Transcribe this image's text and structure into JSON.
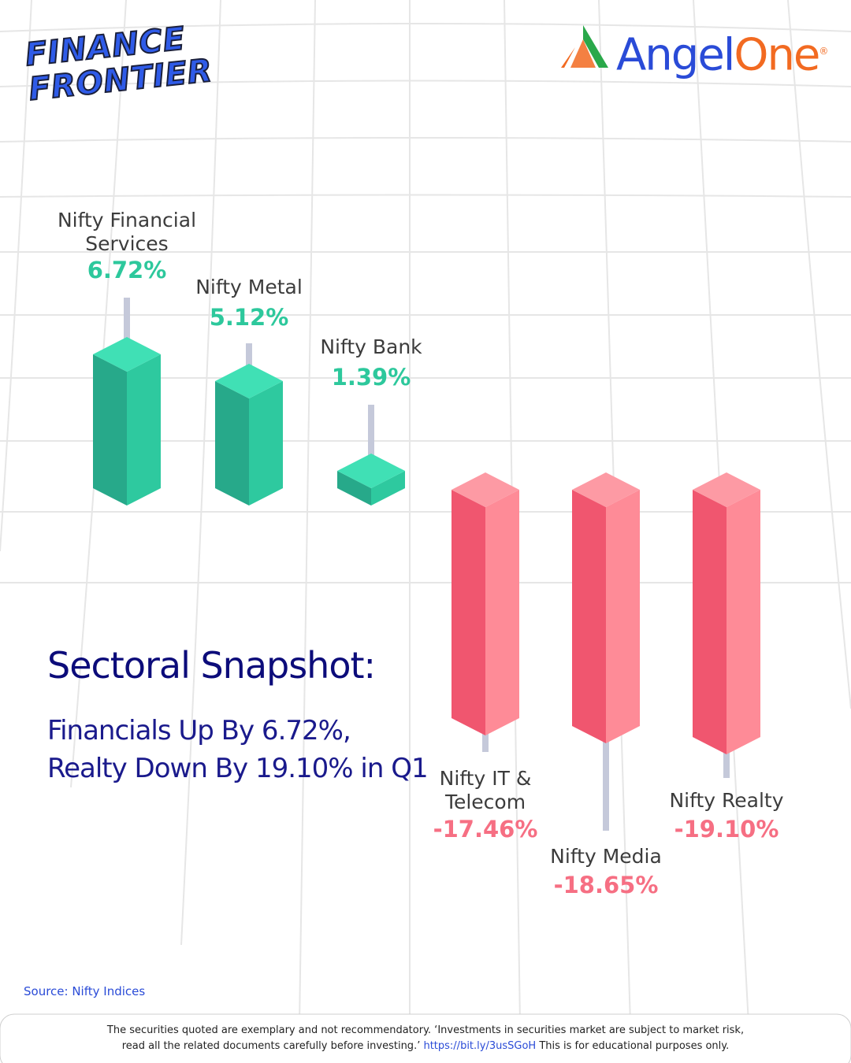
{
  "header": {
    "brand_left": [
      "FINANCE",
      "FRONTIER"
    ],
    "brand_right": [
      "Angel",
      "One"
    ],
    "registered": "®"
  },
  "gainers": [
    {
      "name": "Nifty Financial Services",
      "change": "6.72%"
    },
    {
      "name": "Nifty Metal",
      "change": "5.12%"
    },
    {
      "name": "Nifty Bank",
      "change": "1.39%"
    }
  ],
  "losers": [
    {
      "name": "Nifty IT & Telecom",
      "change": "-17.46%"
    },
    {
      "name": "Nifty Media",
      "change": "-18.65%"
    },
    {
      "name": "Nifty Realty",
      "change": "-19.10%"
    }
  ],
  "headline": {
    "title": "Sectoral Snapshot:",
    "lines": [
      "Financials Up By 6.72%,",
      "Realty Down By 19.10% in Q1"
    ]
  },
  "source": "Source: Nifty Indices",
  "disclaimer": {
    "before": "The securities quoted are exemplary and not recommendatory. ‘Investments in securities market are subject to market risk, read all the related documents carefully before investing.’",
    "link": "https://bit.ly/3usSGoH",
    "after": "This is for educational purposes only."
  }
}
